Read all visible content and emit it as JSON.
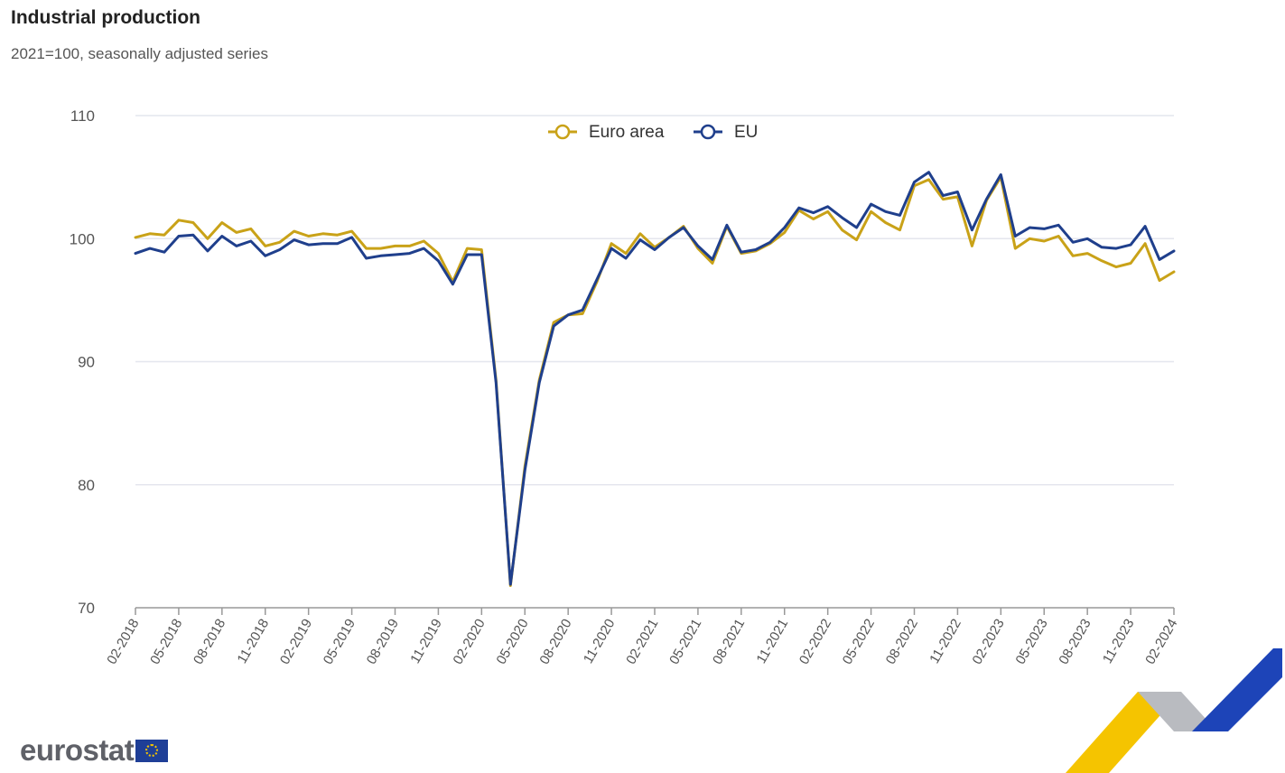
{
  "header": {
    "title": "Industrial production",
    "subtitle": "2021=100, seasonally adjusted series"
  },
  "brand": {
    "logo_text": "eurostat",
    "flag_icon": "eu-flag-icon"
  },
  "colors": {
    "euro_area": "#c9a218",
    "eu": "#1f3f8c",
    "grid": "#e4e6ee",
    "axis": "#999999"
  },
  "chart_data": {
    "type": "line",
    "title": "Industrial production",
    "subtitle": "2021=100, seasonally adjusted series",
    "xlabel": "",
    "ylabel": "",
    "ylim": [
      70,
      110
    ],
    "yticks": [
      70,
      80,
      90,
      100,
      110
    ],
    "grid": true,
    "legend": "top-center",
    "x": [
      "02-2018",
      "03-2018",
      "04-2018",
      "05-2018",
      "06-2018",
      "07-2018",
      "08-2018",
      "09-2018",
      "10-2018",
      "11-2018",
      "12-2018",
      "01-2019",
      "02-2019",
      "03-2019",
      "04-2019",
      "05-2019",
      "06-2019",
      "07-2019",
      "08-2019",
      "09-2019",
      "10-2019",
      "11-2019",
      "12-2019",
      "01-2020",
      "02-2020",
      "03-2020",
      "04-2020",
      "05-2020",
      "06-2020",
      "07-2020",
      "08-2020",
      "09-2020",
      "10-2020",
      "11-2020",
      "12-2020",
      "01-2021",
      "02-2021",
      "03-2021",
      "04-2021",
      "05-2021",
      "06-2021",
      "07-2021",
      "08-2021",
      "09-2021",
      "10-2021",
      "11-2021",
      "12-2021",
      "01-2022",
      "02-2022",
      "03-2022",
      "04-2022",
      "05-2022",
      "06-2022",
      "07-2022",
      "08-2022",
      "09-2022",
      "10-2022",
      "11-2022",
      "12-2022",
      "01-2023",
      "02-2023",
      "03-2023",
      "04-2023",
      "05-2023",
      "06-2023",
      "07-2023",
      "08-2023",
      "09-2023",
      "10-2023",
      "11-2023",
      "12-2023",
      "01-2024",
      "02-2024"
    ],
    "x_tick_labels": [
      "02-2018",
      "05-2018",
      "08-2018",
      "11-2018",
      "02-2019",
      "05-2019",
      "08-2019",
      "11-2019",
      "02-2020",
      "05-2020",
      "08-2020",
      "11-2020",
      "02-2021",
      "05-2021",
      "08-2021",
      "11-2021",
      "02-2022",
      "05-2022",
      "08-2022",
      "11-2022",
      "02-2023",
      "05-2023",
      "08-2023",
      "11-2023",
      "02-2024"
    ],
    "series": [
      {
        "name": "Euro area",
        "color": "#c9a218",
        "values": [
          100.1,
          100.4,
          100.3,
          101.5,
          101.3,
          100.0,
          101.3,
          100.5,
          100.8,
          99.4,
          99.7,
          100.6,
          100.2,
          100.4,
          100.3,
          100.6,
          99.2,
          99.2,
          99.4,
          99.4,
          99.8,
          98.8,
          96.5,
          99.2,
          99.1,
          88.5,
          71.8,
          81.5,
          88.5,
          93.2,
          93.8,
          93.9,
          96.5,
          99.6,
          98.8,
          100.4,
          99.3,
          100.1,
          101.0,
          99.2,
          98.0,
          101.0,
          98.8,
          99.0,
          99.6,
          100.5,
          102.3,
          101.6,
          102.2,
          100.7,
          99.9,
          102.2,
          101.3,
          100.7,
          104.3,
          104.8,
          103.2,
          103.4,
          99.4,
          103.1,
          105.0,
          99.2,
          100.0,
          99.8,
          100.2,
          98.6,
          98.8,
          98.2,
          97.7,
          98.0,
          99.6,
          96.6,
          97.3
        ]
      },
      {
        "name": "EU",
        "color": "#1f3f8c",
        "values": [
          98.8,
          99.2,
          98.9,
          100.2,
          100.3,
          99.0,
          100.2,
          99.4,
          99.8,
          98.6,
          99.1,
          99.9,
          99.5,
          99.6,
          99.6,
          100.1,
          98.4,
          98.6,
          98.7,
          98.8,
          99.2,
          98.2,
          96.3,
          98.7,
          98.7,
          88.3,
          71.9,
          81.2,
          88.3,
          92.9,
          93.8,
          94.2,
          96.7,
          99.2,
          98.4,
          99.9,
          99.1,
          100.1,
          100.9,
          99.4,
          98.3,
          101.1,
          98.9,
          99.1,
          99.7,
          100.9,
          102.5,
          102.1,
          102.6,
          101.7,
          100.9,
          102.8,
          102.2,
          101.9,
          104.6,
          105.4,
          103.5,
          103.8,
          100.7,
          103.2,
          105.2,
          100.2,
          100.9,
          100.8,
          101.1,
          99.7,
          100.0,
          99.3,
          99.2,
          99.5,
          101.0,
          98.3,
          99.0
        ]
      }
    ]
  }
}
